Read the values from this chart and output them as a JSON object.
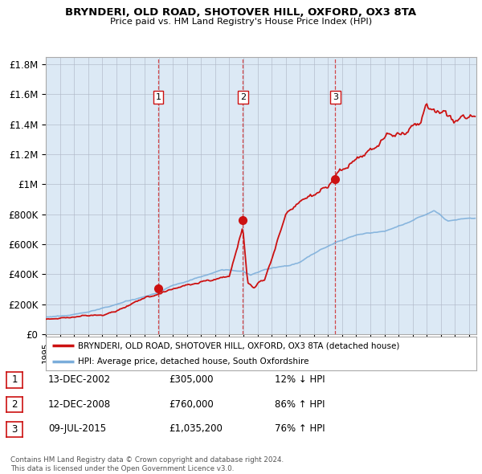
{
  "title": "BRYNDERI, OLD ROAD, SHOTOVER HILL, OXFORD, OX3 8TA",
  "subtitle": "Price paid vs. HM Land Registry's House Price Index (HPI)",
  "ylim": [
    0,
    1850000
  ],
  "xlim_start": 1995.0,
  "xlim_end": 2025.5,
  "plot_bg_color": "#dce9f5",
  "hpi_color": "#7aadda",
  "price_color": "#cc1111",
  "sale_dates": [
    2002.96,
    2008.96,
    2015.52
  ],
  "sale_prices": [
    305000,
    760000,
    1035200
  ],
  "sale_labels": [
    "1",
    "2",
    "3"
  ],
  "legend_line1": "BRYNDERI, OLD ROAD, SHOTOVER HILL, OXFORD, OX3 8TA (detached house)",
  "legend_line2": "HPI: Average price, detached house, South Oxfordshire",
  "table_data": [
    {
      "num": "1",
      "date": "13-DEC-2002",
      "price": "£305,000",
      "hpi": "12% ↓ HPI"
    },
    {
      "num": "2",
      "date": "12-DEC-2008",
      "price": "£760,000",
      "hpi": "86% ↑ HPI"
    },
    {
      "num": "3",
      "date": "09-JUL-2015",
      "price": "£1,035,200",
      "hpi": "76% ↑ HPI"
    }
  ],
  "footer": "Contains HM Land Registry data © Crown copyright and database right 2024.\nThis data is licensed under the Open Government Licence v3.0.",
  "ytick_labels": [
    "£0",
    "£200K",
    "£400K",
    "£600K",
    "£800K",
    "£1M",
    "£1.2M",
    "£1.4M",
    "£1.6M",
    "£1.8M"
  ],
  "ytick_values": [
    0,
    200000,
    400000,
    600000,
    800000,
    1000000,
    1200000,
    1400000,
    1600000,
    1800000
  ]
}
